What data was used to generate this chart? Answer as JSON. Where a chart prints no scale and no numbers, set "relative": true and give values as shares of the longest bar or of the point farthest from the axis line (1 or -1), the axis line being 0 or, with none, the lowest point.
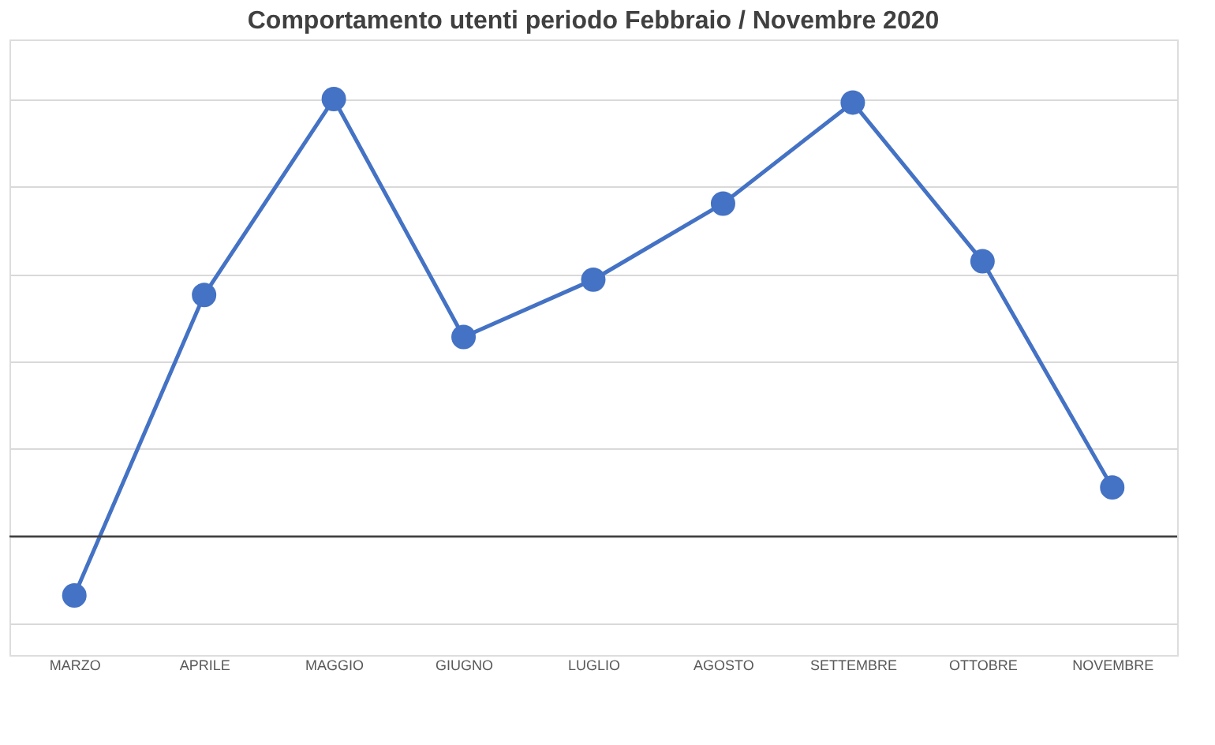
{
  "chart_data": {
    "type": "line",
    "title": "Comportamento utenti periodo Febbraio / Novembre 2020",
    "categories": [
      "MARZO",
      "APRILE",
      "MAGGIO",
      "GIUGNO",
      "LUGLIO",
      "AGOSTO",
      "SETTEMBRE",
      "OTTOBRE",
      "NOVEMBRE"
    ],
    "series": [
      {
        "color": "#4472c4",
        "values": [
          -0.135,
          0.552,
          1,
          0.456,
          0.587,
          0.761,
          0.992,
          0.629,
          0.112
        ]
      }
    ],
    "relative": true,
    "grid": "y",
    "marker": "circle",
    "line_style": "solid"
  }
}
